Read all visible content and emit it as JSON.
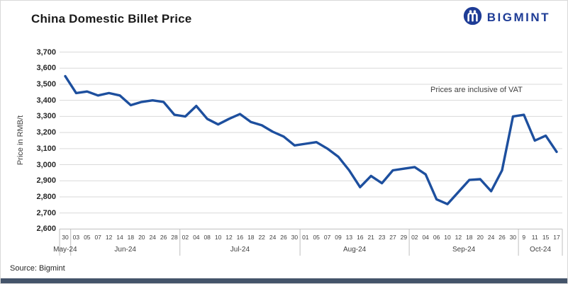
{
  "header": {
    "title": "China Domestic Billet Price",
    "logo_text": "BIGMINT",
    "logo_color": "#1e3c96"
  },
  "chart_data": {
    "type": "line",
    "title": "China Domestic Billet Price",
    "series_name": "Domestic billet price",
    "ylabel": "Price in RMB/t",
    "ylim": [
      2600,
      3700
    ],
    "ytick_step": 100,
    "ytick_labels": [
      "3,700",
      "3,600",
      "3,500",
      "3,400",
      "3,300",
      "3,200",
      "3,100",
      "3,000",
      "2,900",
      "2,800",
      "2,700",
      "2,600"
    ],
    "grid": true,
    "legend": "none",
    "annotation": "Prices are inclusive of VAT",
    "line_color": "#1d4f9e",
    "x": [
      "30",
      "03",
      "05",
      "07",
      "12",
      "14",
      "18",
      "20",
      "24",
      "26",
      "28",
      "02",
      "04",
      "08",
      "10",
      "12",
      "16",
      "18",
      "22",
      "24",
      "26",
      "30",
      "01",
      "05",
      "07",
      "09",
      "13",
      "16",
      "21",
      "23",
      "27",
      "29",
      "02",
      "04",
      "06",
      "10",
      "12",
      "18",
      "20",
      "24",
      "26",
      "30",
      "9",
      "11",
      "15",
      "17"
    ],
    "values": [
      3550,
      3445,
      3455,
      3430,
      3445,
      3430,
      3370,
      3390,
      3400,
      3390,
      3310,
      3300,
      3365,
      3285,
      3250,
      3285,
      3315,
      3265,
      3245,
      3205,
      3175,
      3120,
      3130,
      3140,
      3100,
      3050,
      2965,
      2860,
      2930,
      2885,
      2965,
      2975,
      2985,
      2940,
      2785,
      2755,
      2830,
      2905,
      2910,
      2835,
      2965,
      3300,
      3310,
      3150,
      3180,
      3080
    ],
    "months": [
      {
        "label": "May-24",
        "count": 1
      },
      {
        "label": "Jun-24",
        "count": 10
      },
      {
        "label": "Jul-24",
        "count": 11
      },
      {
        "label": "Aug-24",
        "count": 10
      },
      {
        "label": "Sep-24",
        "count": 10
      },
      {
        "label": "Oct-24",
        "count": 4
      }
    ]
  },
  "footer": {
    "source": "Source: Bigmint",
    "bar_color": "#44546a"
  }
}
